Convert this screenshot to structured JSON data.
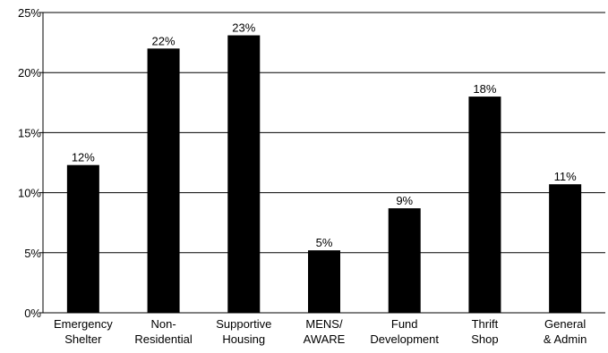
{
  "chart_data": {
    "type": "bar",
    "categories": [
      "Emergency Shelter",
      "Non-Residential",
      "Supportive Housing",
      "MENS/ AWARE",
      "Fund Development",
      "Thrift Shop",
      "General & Admin"
    ],
    "category_lines": [
      [
        "Emergency",
        "Shelter"
      ],
      [
        "Non-",
        "Residential"
      ],
      [
        "Supportive",
        "Housing"
      ],
      [
        "MENS/",
        "AWARE"
      ],
      [
        "Fund",
        "Development"
      ],
      [
        "Thrift",
        "Shop"
      ],
      [
        "General",
        "& Admin"
      ]
    ],
    "values": [
      12.3,
      22.0,
      23.1,
      5.2,
      8.7,
      18.0,
      10.7
    ],
    "data_labels": [
      "12%",
      "22%",
      "23%",
      "5%",
      "9%",
      "18%",
      "11%"
    ],
    "ylim": [
      0,
      25
    ],
    "y_ticks": [
      0,
      5,
      10,
      15,
      20,
      25
    ],
    "y_tick_labels": [
      "0%",
      "5%",
      "10%",
      "15%",
      "20%",
      "25%"
    ],
    "grid": true,
    "legend": "none",
    "title": "",
    "xlabel": "",
    "ylabel": "",
    "bar_color": "#000000",
    "grid_color": "#000000"
  }
}
